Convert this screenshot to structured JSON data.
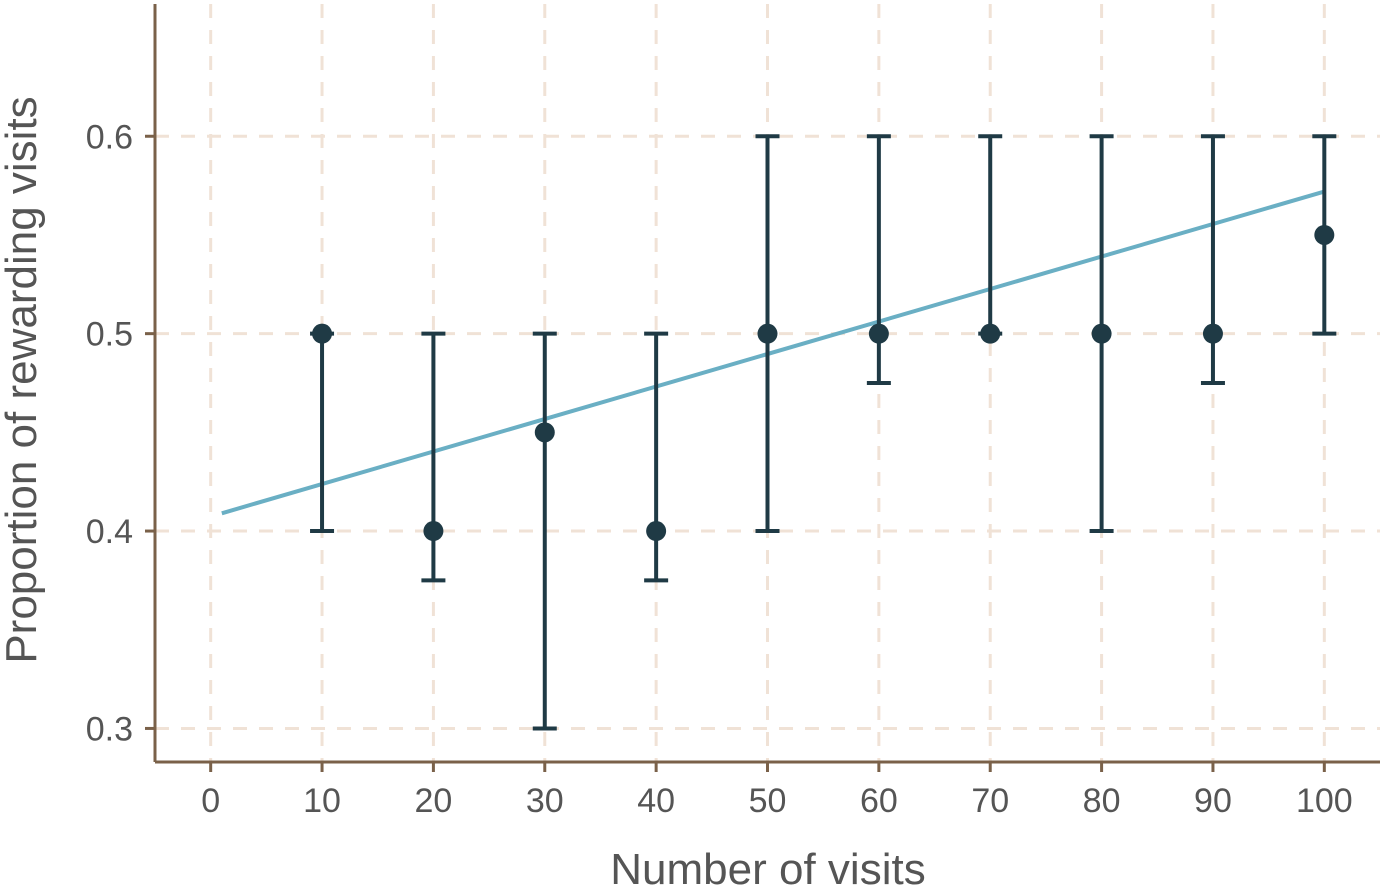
{
  "chart_data": {
    "type": "scatter",
    "title": "",
    "xlabel": "Number of visits",
    "ylabel": "Proportion of rewarding visits",
    "xlim": [
      -5,
      105
    ],
    "ylim": [
      0.283,
      0.667
    ],
    "xticks": [
      0,
      10,
      20,
      30,
      40,
      50,
      60,
      70,
      80,
      90,
      100
    ],
    "xtick_labels": [
      "0",
      "10",
      "20",
      "30",
      "40",
      "50",
      "60",
      "70",
      "80",
      "90",
      "100"
    ],
    "yticks": [
      0.3,
      0.4,
      0.5,
      0.6
    ],
    "ytick_labels": [
      "0.3",
      "0.4",
      "0.5",
      "0.6"
    ],
    "grid": true,
    "series": [
      {
        "kind": "points_with_errorbars",
        "color": "#1f3a45",
        "points": [
          {
            "x": 10,
            "y": 0.5,
            "low": 0.4,
            "high": 0.5
          },
          {
            "x": 20,
            "y": 0.4,
            "low": 0.375,
            "high": 0.5
          },
          {
            "x": 30,
            "y": 0.45,
            "low": 0.3,
            "high": 0.5
          },
          {
            "x": 40,
            "y": 0.4,
            "low": 0.375,
            "high": 0.5
          },
          {
            "x": 50,
            "y": 0.5,
            "low": 0.4,
            "high": 0.6
          },
          {
            "x": 60,
            "y": 0.5,
            "low": 0.475,
            "high": 0.6
          },
          {
            "x": 70,
            "y": 0.5,
            "low": 0.5,
            "high": 0.6
          },
          {
            "x": 80,
            "y": 0.5,
            "low": 0.4,
            "high": 0.6
          },
          {
            "x": 90,
            "y": 0.5,
            "low": 0.475,
            "high": 0.6
          },
          {
            "x": 100,
            "y": 0.55,
            "low": 0.5,
            "high": 0.6
          }
        ]
      },
      {
        "kind": "trend_line",
        "color": "#6aafc4",
        "x": [
          1,
          100
        ],
        "y": [
          0.409,
          0.572
        ]
      }
    ],
    "colors": {
      "axis": "#7a6149",
      "grid": "#f0e2d6",
      "tick_text": "#555555"
    }
  }
}
